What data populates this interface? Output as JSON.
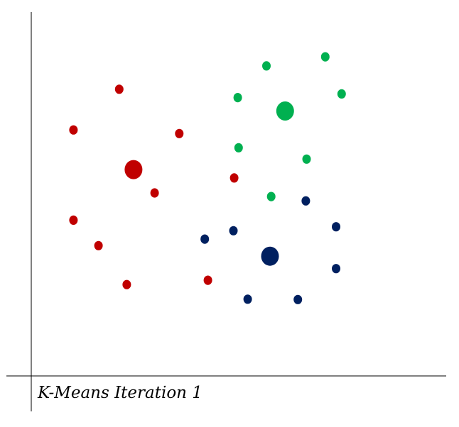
{
  "chart_data": {
    "type": "scatter",
    "title": "",
    "caption": "K-Means Iteration 1",
    "xlabel": "",
    "ylabel": "",
    "xlim": [
      0,
      100
    ],
    "ylim": [
      0,
      100
    ],
    "grid": false,
    "legend": "none",
    "series": [
      {
        "color": "#c00000",
        "centroid": {
          "x": 25.7,
          "y": 56.7
        },
        "points": [
          {
            "x": 22.1,
            "y": 78.8
          },
          {
            "x": 10.6,
            "y": 67.6
          },
          {
            "x": 37.2,
            "y": 66.6
          },
          {
            "x": 51.0,
            "y": 54.4
          },
          {
            "x": 31.0,
            "y": 50.3
          },
          {
            "x": 10.6,
            "y": 42.8
          },
          {
            "x": 16.9,
            "y": 35.8
          },
          {
            "x": 44.4,
            "y": 26.3
          },
          {
            "x": 24.0,
            "y": 25.1
          }
        ]
      },
      {
        "color": "#00b050",
        "centroid": {
          "x": 63.8,
          "y": 72.8
        },
        "points": [
          {
            "x": 73.9,
            "y": 87.7
          },
          {
            "x": 59.1,
            "y": 85.2
          },
          {
            "x": 78.0,
            "y": 77.5
          },
          {
            "x": 51.9,
            "y": 76.5
          },
          {
            "x": 52.1,
            "y": 62.7
          },
          {
            "x": 69.2,
            "y": 59.6
          },
          {
            "x": 60.3,
            "y": 49.3
          }
        ]
      },
      {
        "color": "#002060",
        "centroid": {
          "x": 60.0,
          "y": 32.9
        },
        "points": [
          {
            "x": 69.0,
            "y": 48.1
          },
          {
            "x": 76.6,
            "y": 41.0
          },
          {
            "x": 50.8,
            "y": 39.9
          },
          {
            "x": 43.6,
            "y": 37.6
          },
          {
            "x": 76.6,
            "y": 29.5
          },
          {
            "x": 54.4,
            "y": 21.1
          },
          {
            "x": 67.0,
            "y": 21.0
          }
        ]
      }
    ]
  }
}
